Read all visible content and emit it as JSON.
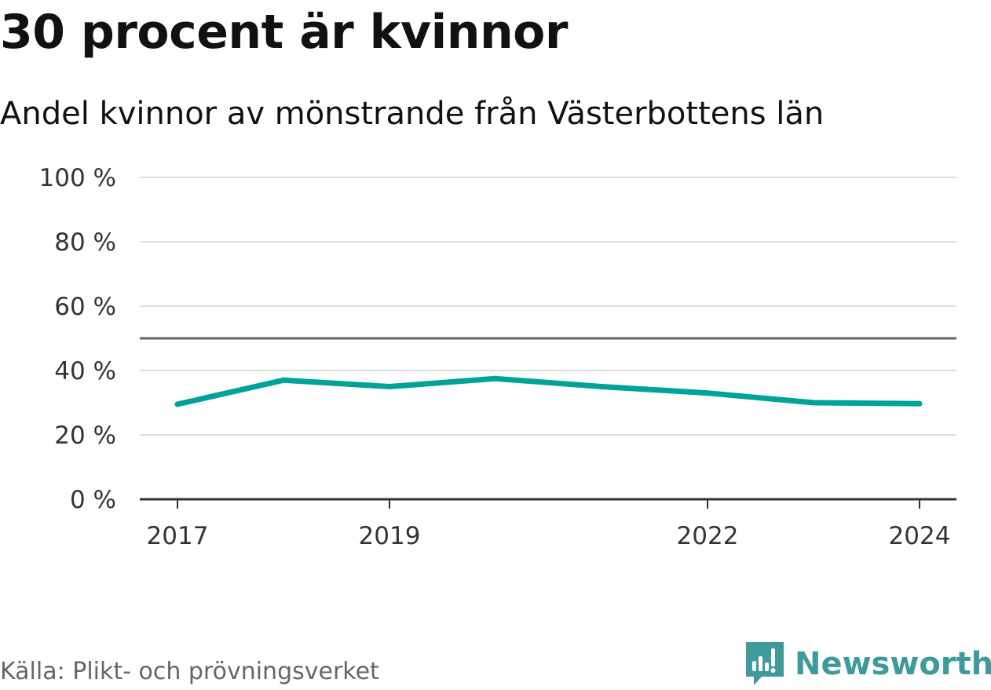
{
  "title": "30 procent är kvinnor",
  "subtitle": "Andel kvinnor av mönstrande från Västerbottens län",
  "source": "Källa: Plikt- och prövningsverket",
  "brand": {
    "name": "Newsworthy",
    "icon": "newsworthy-logo-icon",
    "color": "#3f9b9b"
  },
  "chart_data": {
    "type": "line",
    "title": "30 procent är kvinnor",
    "subtitle": "Andel kvinnor av mönstrande från Västerbottens län",
    "xlabel": "",
    "ylabel": "",
    "x": [
      2017,
      2018,
      2019,
      2020,
      2021,
      2022,
      2023,
      2024
    ],
    "series": [
      {
        "name": "Andel kvinnor",
        "color": "#00a39a",
        "values": [
          29.5,
          37,
          35,
          37.5,
          35,
          33,
          30,
          29.7
        ]
      }
    ],
    "xlim": [
      2017,
      2024
    ],
    "ylim": [
      0,
      100
    ],
    "y_ticks": [
      0,
      20,
      40,
      60,
      80,
      100
    ],
    "y_tick_labels": [
      "0 %",
      "20 %",
      "40 %",
      "60 %",
      "80 %",
      "100 %"
    ],
    "x_ticks": [
      2017,
      2019,
      2022,
      2024
    ],
    "x_tick_labels": [
      "2017",
      "2019",
      "2022",
      "2024"
    ],
    "reference_line": {
      "value": 50,
      "color": "#666666"
    },
    "grid": true
  }
}
